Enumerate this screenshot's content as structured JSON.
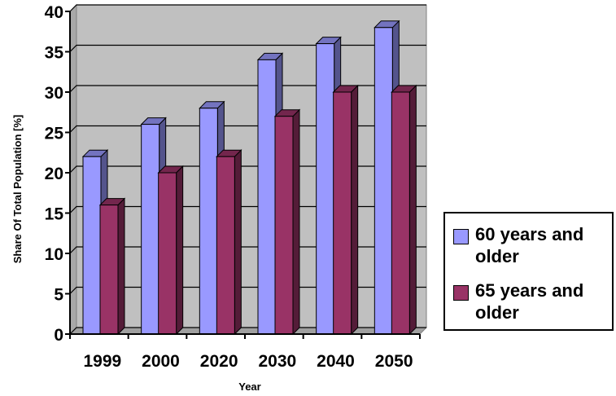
{
  "chart_data": {
    "type": "bar",
    "title": "",
    "xlabel": "Year",
    "ylabel": "Share Of Total Population [%]",
    "categories": [
      "1999",
      "2000",
      "2020",
      "2030",
      "2040",
      "2050"
    ],
    "series": [
      {
        "name": "60 years and older",
        "values": [
          22,
          26,
          28,
          34,
          36,
          38
        ],
        "color": "#9999ff"
      },
      {
        "name": "65 years and older",
        "values": [
          16,
          20,
          22,
          27,
          30,
          30
        ],
        "color": "#993366"
      }
    ],
    "ylim": [
      0,
      40
    ],
    "yticks": [
      0,
      5,
      10,
      15,
      20,
      25,
      30,
      35,
      40
    ],
    "grid": true,
    "legend_position": "right",
    "background_color": "#c0c0c0",
    "style": "3d-bars"
  }
}
